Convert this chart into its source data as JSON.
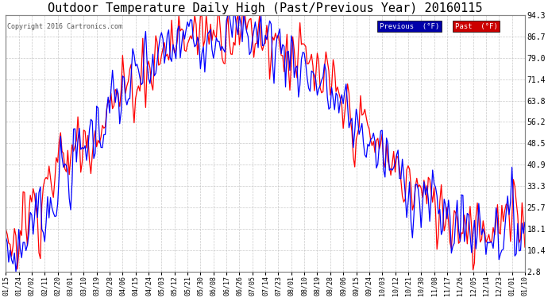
{
  "title": "Outdoor Temperature Daily High (Past/Previous Year) 20160115",
  "copyright": "Copyright 2016 Cartronics.com",
  "ylabel_right": [
    "94.3",
    "86.7",
    "79.0",
    "71.4",
    "63.8",
    "56.2",
    "48.5",
    "40.9",
    "33.3",
    "25.7",
    "18.1",
    "10.4",
    "2.8"
  ],
  "yticks": [
    94.3,
    86.7,
    79.0,
    71.4,
    63.8,
    56.2,
    48.5,
    40.9,
    33.3,
    25.7,
    18.1,
    10.4,
    2.8
  ],
  "ylim_min": 2.8,
  "ylim_max": 94.3,
  "legend_label_prev": "Previous  (°F)",
  "legend_label_past": "Past  (°F)",
  "background_color": "#ffffff",
  "grid_color": "#bbbbbb",
  "title_fontsize": 11,
  "copyright_color": "#555555",
  "line_width": 0.9,
  "prev_color": "#0000ff",
  "past_color": "#ff0000",
  "prev_legend_bg": "#0000aa",
  "past_legend_bg": "#cc0000"
}
